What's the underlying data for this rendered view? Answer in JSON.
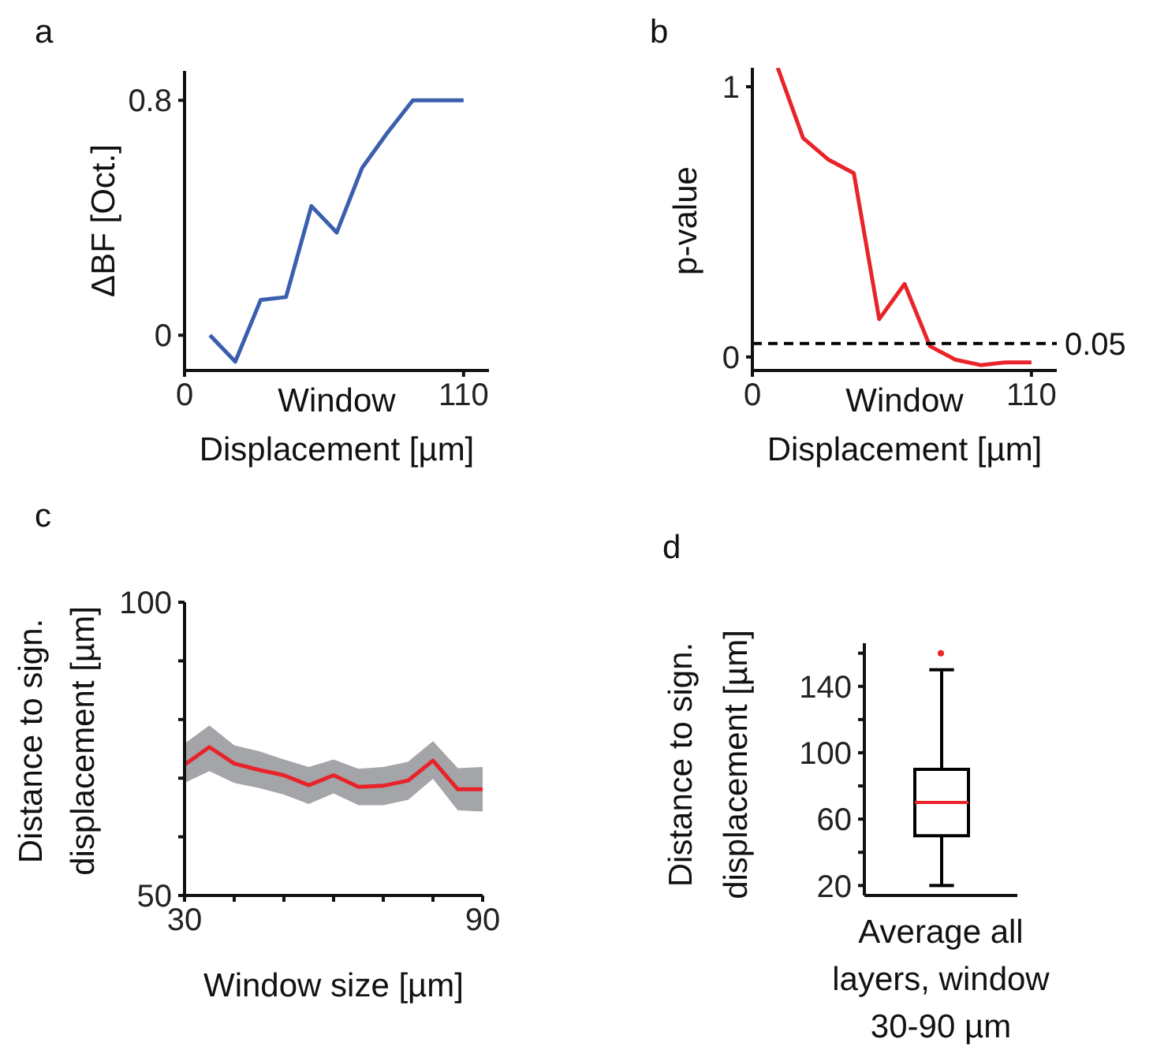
{
  "chart_data": [
    {
      "type": "line",
      "title": "a",
      "xlabel": "Window Displacement [µm]",
      "ylabel": "ΔBF [Oct.]",
      "x": [
        10,
        20,
        30,
        40,
        50,
        60,
        70,
        80,
        90,
        100,
        110
      ],
      "series": [
        {
          "color": "#3a5fad",
          "values": [
            0.0,
            -0.09,
            0.12,
            0.13,
            0.44,
            0.35,
            0.57,
            0.69,
            0.8,
            0.8,
            0.8
          ]
        }
      ],
      "xlim": [
        0,
        120
      ],
      "xticks": [
        0,
        110
      ],
      "ylim": [
        -0.12,
        0.9
      ],
      "yticks": [
        0,
        0.8
      ]
    },
    {
      "type": "line",
      "title": "b",
      "xlabel": "Window Displacement [µm]",
      "ylabel": "p-value",
      "x": [
        10,
        20,
        30,
        40,
        50,
        60,
        70,
        80,
        90,
        100,
        110
      ],
      "series": [
        {
          "color": "#e8242a",
          "values": [
            1.07,
            0.81,
            0.73,
            0.68,
            0.14,
            0.27,
            0.04,
            -0.01,
            -0.03,
            -0.02,
            -0.02
          ]
        }
      ],
      "xlim": [
        0,
        120
      ],
      "xticks": [
        0,
        110
      ],
      "ylim": [
        -0.05,
        1.07
      ],
      "yticks": [
        0,
        1
      ],
      "ref_lines": [
        {
          "axis": "y",
          "value": 0.05,
          "label": "0.05",
          "color": "#000000",
          "line_style": "dashed"
        }
      ]
    },
    {
      "type": "line",
      "title": "c",
      "xlabel": "Window size [µm]",
      "ylabel": "Distance to sign. displacement [µm]",
      "x": [
        30,
        35,
        40,
        45,
        50,
        55,
        60,
        65,
        70,
        75,
        80,
        85,
        90
      ],
      "series": [
        {
          "color": "#e8242a",
          "values": [
            72.3,
            75.3,
            72.5,
            71.4,
            70.5,
            68.8,
            70.5,
            68.5,
            68.7,
            69.6,
            73.0,
            68.1,
            68.1
          ],
          "lower": [
            69.2,
            71.2,
            69.2,
            68.3,
            67.2,
            65.6,
            67.4,
            65.4,
            65.4,
            66.3,
            69.9,
            64.5,
            64.3
          ],
          "upper": [
            75.9,
            79.0,
            75.6,
            74.6,
            73.2,
            71.9,
            73.2,
            71.6,
            71.9,
            72.8,
            76.3,
            71.7,
            71.9
          ]
        }
      ],
      "xlim": [
        30,
        90
      ],
      "xticks": [
        30,
        {
          "value": 40,
          "label": null
        },
        {
          "value": 50,
          "label": null
        },
        {
          "value": 60,
          "label": null
        },
        {
          "value": 70,
          "label": null
        },
        {
          "value": 80,
          "label": null
        },
        90
      ],
      "ylim": [
        50,
        100
      ],
      "yticks": [
        50,
        {
          "value": 60,
          "label": null
        },
        {
          "value": 70,
          "label": null
        },
        {
          "value": 80,
          "label": null
        },
        {
          "value": 90,
          "label": null
        },
        100
      ]
    },
    {
      "type": "box",
      "title": "d",
      "ylabel": "Distance to sign. displacement [µm]",
      "categories": [
        "Average all layers, window 30-90 µm"
      ],
      "series": [
        {
          "color": "#000000",
          "boxes": [
            {
              "low": 20,
              "q1": 50,
              "median": 70,
              "q3": 90,
              "high": 150,
              "outliers": [
                160
              ]
            }
          ]
        }
      ],
      "ylim": [
        14,
        166
      ],
      "yticks": [
        20,
        {
          "value": 40,
          "label": null
        },
        60,
        {
          "value": 80,
          "label": null
        },
        100,
        {
          "value": 120,
          "label": null
        },
        140,
        {
          "value": 160,
          "label": null
        }
      ]
    }
  ]
}
